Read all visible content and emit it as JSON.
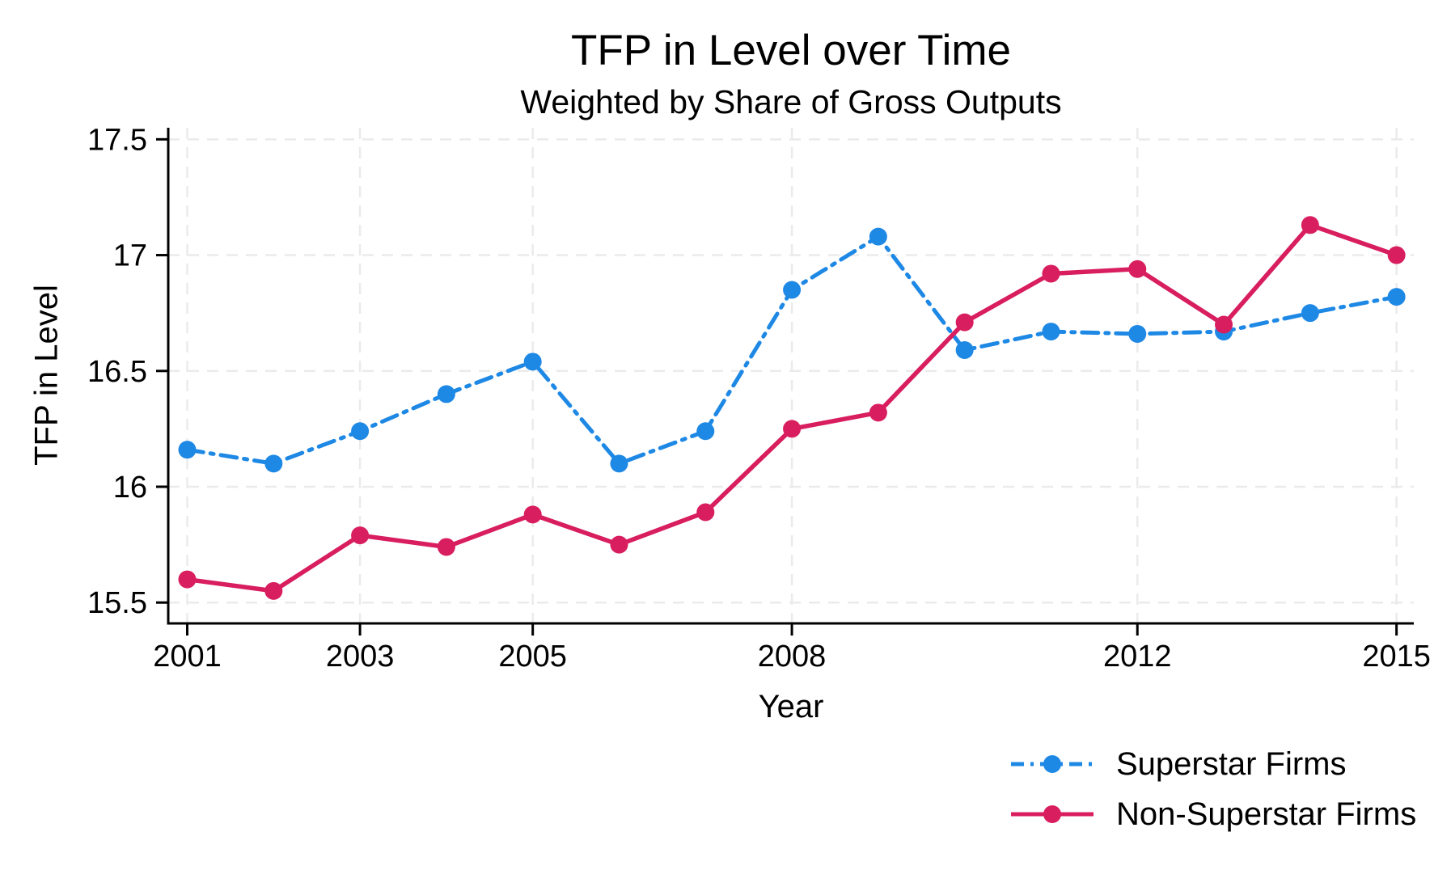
{
  "chart_data": {
    "type": "line",
    "title": "TFP in Level over Time",
    "subtitle": "Weighted by Share of Gross Outputs",
    "xlabel": "Year",
    "ylabel": "TFP in Level",
    "x": [
      2001,
      2002,
      2003,
      2004,
      2005,
      2006,
      2007,
      2008,
      2009,
      2010,
      2011,
      2012,
      2013,
      2014,
      2015
    ],
    "series": [
      {
        "name": "Superstar Firms",
        "color": "#1e88e5",
        "line_style": "dash-dot",
        "marker": "circle",
        "values": [
          16.16,
          16.1,
          16.24,
          16.4,
          16.54,
          16.1,
          16.24,
          16.85,
          17.08,
          16.59,
          16.67,
          16.66,
          16.67,
          16.75,
          16.82
        ]
      },
      {
        "name": "Non-Superstar Firms",
        "color": "#d81e5e",
        "line_style": "solid",
        "marker": "circle",
        "values": [
          15.6,
          15.55,
          15.79,
          15.74,
          15.88,
          15.75,
          15.89,
          16.25,
          16.32,
          16.71,
          16.92,
          16.94,
          16.7,
          17.13,
          17.0
        ]
      }
    ],
    "xticks": {
      "values": [
        2001,
        2003,
        2005,
        2008,
        2012,
        2015
      ],
      "labels": [
        "2001",
        "2003",
        "2005",
        "2008",
        "2012",
        "2015"
      ]
    },
    "yticks": {
      "values": [
        15.5,
        16,
        16.5,
        17,
        17.5
      ],
      "labels": [
        "15.5",
        "16",
        "16.5",
        "17",
        "17.5"
      ]
    },
    "xlim": [
      2000.78,
      2015.2
    ],
    "ylim": [
      15.41,
      17.55
    ],
    "grid": true,
    "grid_color": "#ebebeb",
    "axis_color": "#000000",
    "legend_position": "bottom-right"
  }
}
